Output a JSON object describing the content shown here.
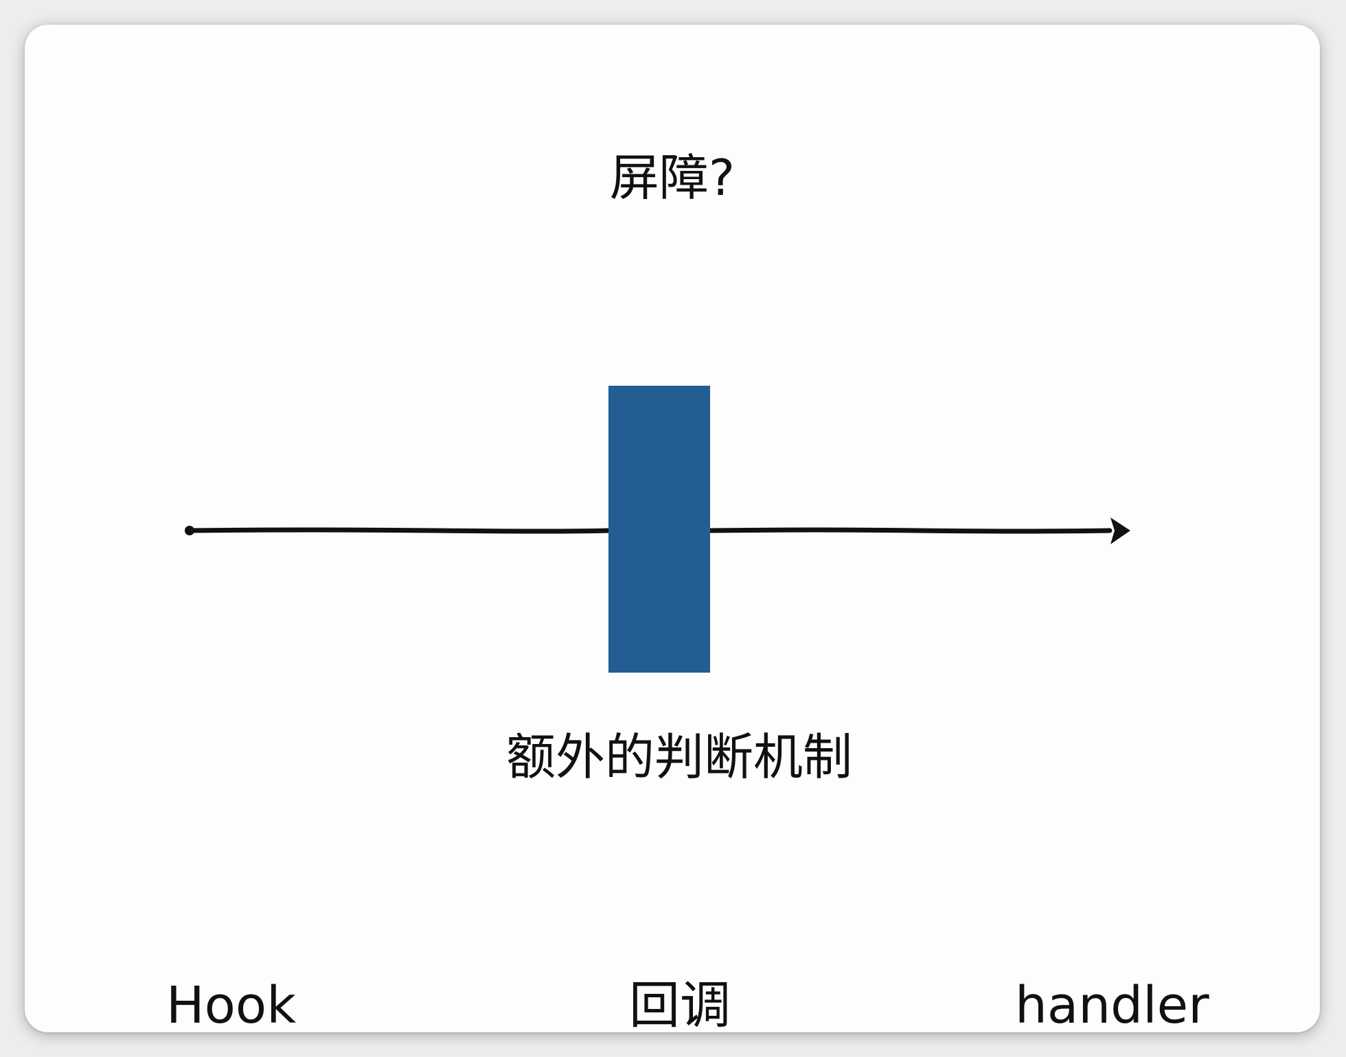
{
  "title": "屏障?",
  "barrier": {
    "label": "额外的判断机制",
    "color": "#245d92"
  },
  "arrow": {
    "color": "#111111"
  },
  "bottom_labels": {
    "left": "Hook",
    "center": "回调",
    "right": "handler"
  }
}
